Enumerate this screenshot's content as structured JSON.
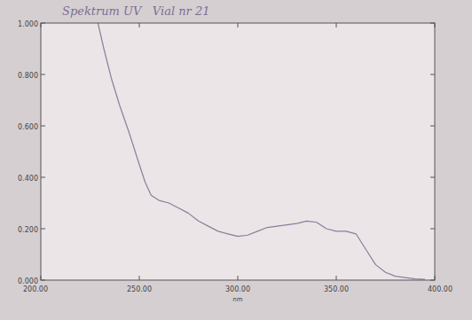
{
  "chart_data": {
    "type": "line",
    "title": "Spektrum UV   Vial nr 21",
    "xlabel": "nm",
    "x": [
      229,
      232,
      236,
      240,
      245,
      250,
      253,
      256,
      260,
      265,
      270,
      275,
      280,
      285,
      290,
      295,
      300,
      305,
      310,
      315,
      320,
      325,
      330,
      335,
      340,
      345,
      350,
      355,
      360,
      365,
      370,
      375,
      380,
      385,
      390,
      395
    ],
    "values": [
      1.0,
      0.9,
      0.78,
      0.68,
      0.57,
      0.45,
      0.38,
      0.33,
      0.31,
      0.3,
      0.28,
      0.26,
      0.23,
      0.21,
      0.19,
      0.18,
      0.17,
      0.175,
      0.19,
      0.205,
      0.21,
      0.215,
      0.22,
      0.23,
      0.225,
      0.2,
      0.19,
      0.19,
      0.18,
      0.12,
      0.06,
      0.03,
      0.015,
      0.01,
      0.005,
      0.003
    ],
    "color": "#8a7f9a",
    "xlim": [
      200,
      400
    ],
    "xticks": [
      {
        "value": 200,
        "label": "200.00"
      },
      {
        "value": 250,
        "label": "250.00"
      },
      {
        "value": 300,
        "label": "300.00"
      },
      {
        "value": 350,
        "label": "350.00"
      },
      {
        "value": 400,
        "label": "400.00"
      }
    ],
    "ylim": [
      0,
      1
    ],
    "yticks": [
      {
        "value": 0,
        "label": "0.000"
      },
      {
        "value": 0.2,
        "label": "0.200"
      },
      {
        "value": 0.4,
        "label": "0.400"
      },
      {
        "value": 0.6,
        "label": "0.600"
      },
      {
        "value": 0.8,
        "label": "0.800"
      },
      {
        "value": 1,
        "label": "1.000"
      }
    ],
    "grid": false
  }
}
